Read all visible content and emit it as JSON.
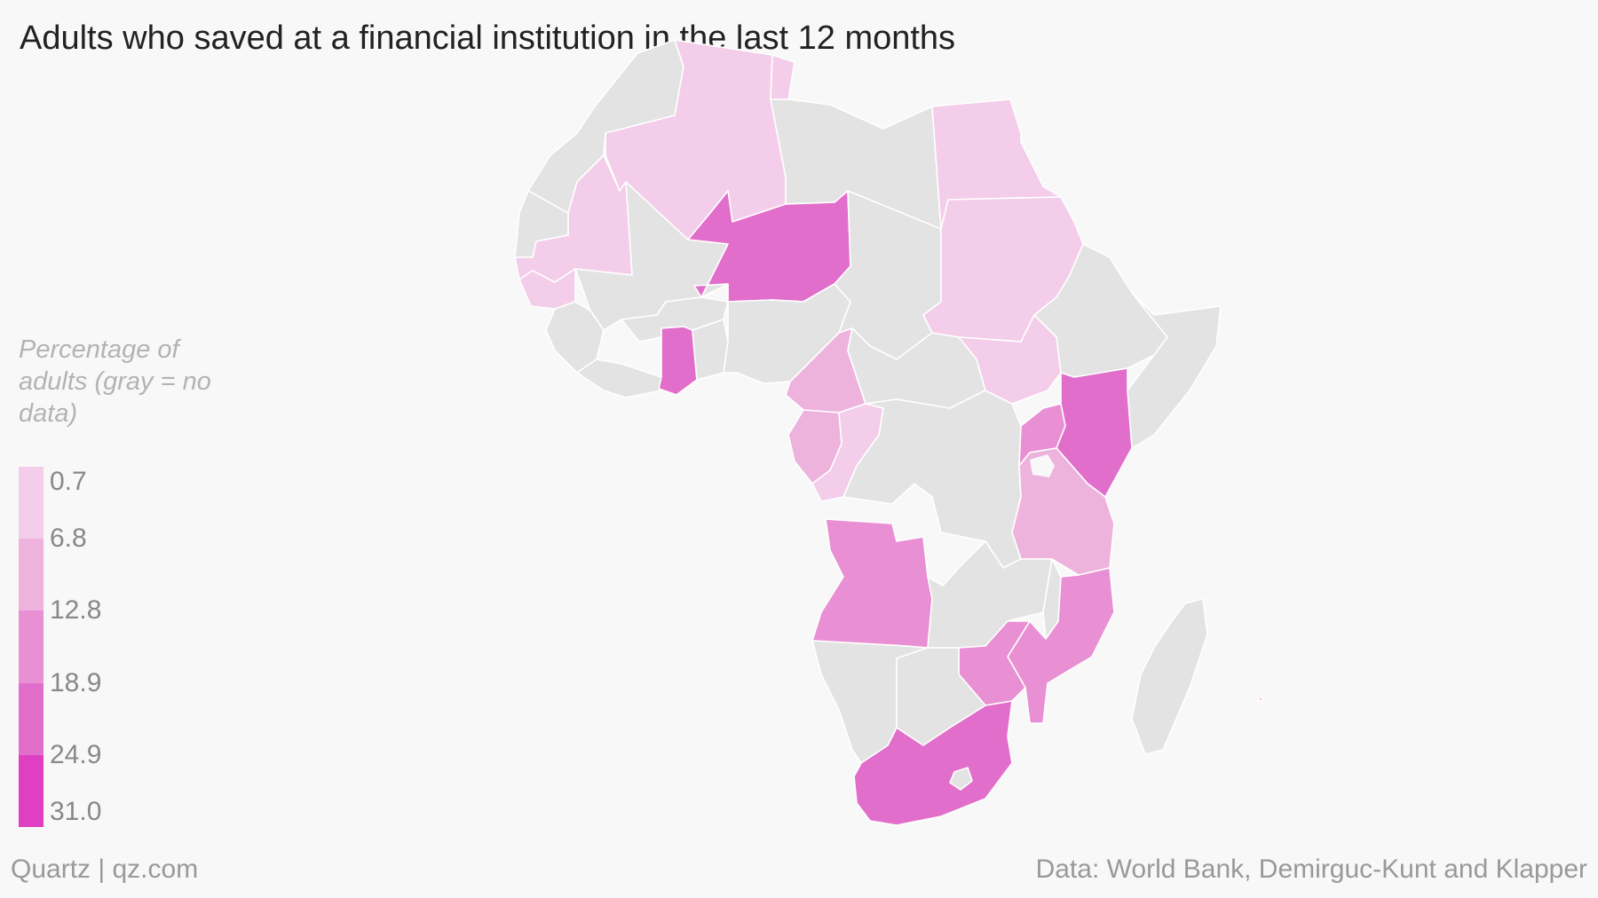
{
  "title": "Adults who saved at a financial institution in the last 12 months",
  "legend": {
    "title": "Percentage of adults (gray = no data)",
    "breaks": [
      "0.7",
      "6.8",
      "12.8",
      "18.9",
      "24.9",
      "31.0"
    ],
    "colors": [
      "#f3cde9",
      "#eeb3dd",
      "#e98fd3",
      "#e26ecb",
      "#df3fc1"
    ],
    "no_data_color": "#e3e3e3"
  },
  "footer": {
    "source_brand": "Quartz | qz.com",
    "credit": "Data: World Bank, Demirguc-Kunt and Klapper"
  },
  "map": {
    "region": "Africa",
    "countries": [
      {
        "name": "Morocco",
        "bin": null
      },
      {
        "name": "Western Sahara",
        "bin": null
      },
      {
        "name": "Algeria",
        "bin": 0
      },
      {
        "name": "Tunisia",
        "bin": 0
      },
      {
        "name": "Libya",
        "bin": null
      },
      {
        "name": "Egypt",
        "bin": 0
      },
      {
        "name": "Mauritania",
        "bin": 0
      },
      {
        "name": "Mali",
        "bin": null
      },
      {
        "name": "Niger",
        "bin": 3
      },
      {
        "name": "Chad",
        "bin": null
      },
      {
        "name": "Sudan",
        "bin": 0
      },
      {
        "name": "Senegal",
        "bin": 0
      },
      {
        "name": "Guinea",
        "bin": null
      },
      {
        "name": "Burkina Faso",
        "bin": null
      },
      {
        "name": "Ghana",
        "bin": 3
      },
      {
        "name": "Nigeria",
        "bin": null
      },
      {
        "name": "Cameroon",
        "bin": 1
      },
      {
        "name": "Central African Republic",
        "bin": null
      },
      {
        "name": "South Sudan",
        "bin": 0
      },
      {
        "name": "Ethiopia",
        "bin": null
      },
      {
        "name": "Somalia",
        "bin": null
      },
      {
        "name": "Gabon",
        "bin": 1
      },
      {
        "name": "Congo",
        "bin": 0
      },
      {
        "name": "DR Congo",
        "bin": null
      },
      {
        "name": "Uganda",
        "bin": 2
      },
      {
        "name": "Kenya",
        "bin": 3
      },
      {
        "name": "Tanzania",
        "bin": 1
      },
      {
        "name": "Angola",
        "bin": 2
      },
      {
        "name": "Zambia",
        "bin": null
      },
      {
        "name": "Malawi",
        "bin": null
      },
      {
        "name": "Mozambique",
        "bin": 2
      },
      {
        "name": "Zimbabwe",
        "bin": 2
      },
      {
        "name": "Namibia",
        "bin": null
      },
      {
        "name": "Botswana",
        "bin": null
      },
      {
        "name": "South Africa",
        "bin": 3
      },
      {
        "name": "Madagascar",
        "bin": null
      }
    ]
  }
}
